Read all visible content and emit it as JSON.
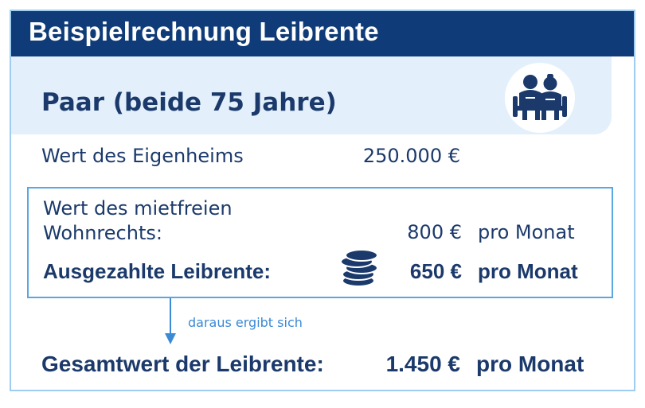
{
  "header": {
    "title": "Beispielrechnung Leibrente"
  },
  "couple": {
    "title": "Paar (beide 75 Jahre)",
    "icon": "couple-icon"
  },
  "home": {
    "label": "Wert des Eigenheims",
    "value": "250.000 €"
  },
  "wohnrecht": {
    "label_line1": "Wert des mietfreien",
    "label_line2": "Wohnrechts:",
    "value": "800 €",
    "unit": "pro Monat"
  },
  "rente": {
    "label": "Ausgezahlte Leibrente:",
    "value": "650 €",
    "unit": "pro Monat",
    "icon": "coins-icon"
  },
  "arrow": {
    "text": "daraus ergibt sich"
  },
  "total": {
    "label": "Gesamtwert der Leibrente:",
    "value": "1.450 €",
    "unit": "pro Monat"
  },
  "colors": {
    "header_bg": "#0f3c78",
    "text": "#1b3a6b",
    "panel_bg": "#e3f0fb",
    "accent": "#3b8ad6"
  }
}
